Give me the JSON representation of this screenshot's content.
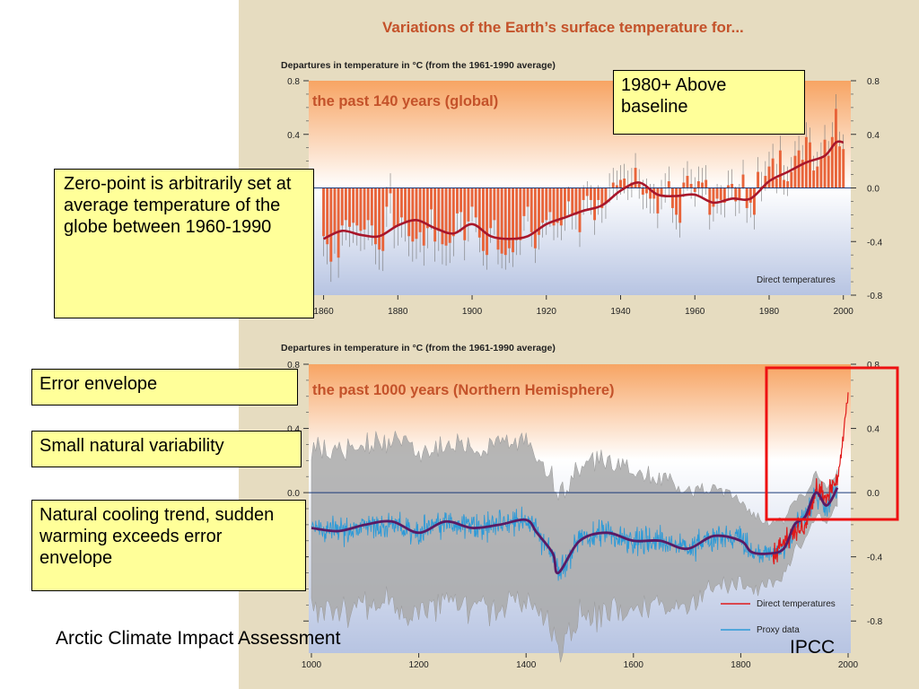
{
  "figure_title": "Variations of the Earth’s surface temperature for...",
  "callouts": {
    "above_baseline": "1980+ Above baseline",
    "zero_point": "Zero-point is arbitrarily set at average temperature of the globe between 1960-1990",
    "error_envelope": "Error envelope",
    "small_variability": "Small natural variability",
    "cooling_trend": "Natural cooling trend, sudden warming exceeds error envelope"
  },
  "footer": {
    "source": "Arctic Climate Impact Assessment",
    "credit": "IPCC"
  },
  "colors": {
    "panel_bg": "#e6dcc0",
    "warm_top": "#f7a463",
    "cool_bottom": "#b7c4e2",
    "title_orange": "#c4522a",
    "bar_orange": "#e8643a",
    "smooth_red": "#a8162a",
    "proxy_blue": "#2c9ad8",
    "smooth_purple": "#5a1a64",
    "envelope_gray": "#a9a9a9",
    "highlight_red": "#ee1111",
    "baseline_blue": "#1a3a78"
  },
  "chart_data": [
    {
      "type": "bar",
      "title": "the past 140 years (global)",
      "ylabel": "Departures in temperature in °C (from the 1961-1990 average)",
      "xlim": [
        1856,
        2002
      ],
      "ylim": [
        -0.8,
        0.8
      ],
      "x_ticks": [
        1860,
        1880,
        1900,
        1920,
        1940,
        1960,
        1980,
        2000
      ],
      "x_tick_labels": [
        "1860",
        "1880",
        "1900",
        "1920",
        "1940",
        "1960",
        "1980",
        "2000"
      ],
      "y_ticks": [
        -0.8,
        -0.4,
        0.0,
        0.4,
        0.8
      ],
      "y_tick_labels": [
        "-0.8",
        "-0.4",
        "0.0",
        "0.4",
        "0.8"
      ],
      "legend": "bottom-right",
      "series": [
        {
          "name": "Direct temperatures",
          "kind": "annual-bars",
          "x": [
            1860,
            1861,
            1862,
            1863,
            1864,
            1865,
            1866,
            1867,
            1868,
            1869,
            1870,
            1871,
            1872,
            1873,
            1874,
            1875,
            1876,
            1877,
            1878,
            1879,
            1880,
            1881,
            1882,
            1883,
            1884,
            1885,
            1886,
            1887,
            1888,
            1889,
            1890,
            1891,
            1892,
            1893,
            1894,
            1895,
            1896,
            1897,
            1898,
            1899,
            1900,
            1901,
            1902,
            1903,
            1904,
            1905,
            1906,
            1907,
            1908,
            1909,
            1910,
            1911,
            1912,
            1913,
            1914,
            1915,
            1916,
            1917,
            1918,
            1919,
            1920,
            1921,
            1922,
            1923,
            1924,
            1925,
            1926,
            1927,
            1928,
            1929,
            1930,
            1931,
            1932,
            1933,
            1934,
            1935,
            1936,
            1937,
            1938,
            1939,
            1940,
            1941,
            1942,
            1943,
            1944,
            1945,
            1946,
            1947,
            1948,
            1949,
            1950,
            1951,
            1952,
            1953,
            1954,
            1955,
            1956,
            1957,
            1958,
            1959,
            1960,
            1961,
            1962,
            1963,
            1964,
            1965,
            1966,
            1967,
            1968,
            1969,
            1970,
            1971,
            1972,
            1973,
            1974,
            1975,
            1976,
            1977,
            1978,
            1979,
            1980,
            1981,
            1982,
            1983,
            1984,
            1985,
            1986,
            1987,
            1988,
            1989,
            1990,
            1991,
            1992,
            1993,
            1994,
            1995,
            1996,
            1997,
            1998,
            1999,
            2000
          ],
          "values": [
            -0.36,
            -0.42,
            -0.55,
            -0.34,
            -0.52,
            -0.28,
            -0.24,
            -0.29,
            -0.26,
            -0.28,
            -0.32,
            -0.31,
            -0.24,
            -0.28,
            -0.42,
            -0.46,
            -0.47,
            -0.14,
            -0.04,
            -0.3,
            -0.28,
            -0.22,
            -0.25,
            -0.36,
            -0.4,
            -0.38,
            -0.33,
            -0.43,
            -0.3,
            -0.16,
            -0.4,
            -0.32,
            -0.42,
            -0.43,
            -0.41,
            -0.36,
            -0.19,
            -0.18,
            -0.39,
            -0.25,
            -0.14,
            -0.22,
            -0.37,
            -0.47,
            -0.5,
            -0.3,
            -0.24,
            -0.46,
            -0.49,
            -0.5,
            -0.45,
            -0.48,
            -0.39,
            -0.39,
            -0.21,
            -0.14,
            -0.33,
            -0.45,
            -0.35,
            -0.26,
            -0.24,
            -0.18,
            -0.28,
            -0.26,
            -0.28,
            -0.21,
            -0.1,
            -0.2,
            -0.2,
            -0.33,
            -0.09,
            -0.06,
            -0.09,
            -0.24,
            -0.09,
            -0.15,
            -0.12,
            0.0,
            0.04,
            0.02,
            0.06,
            0.07,
            0.02,
            0.04,
            0.15,
            0.03,
            -0.05,
            -0.04,
            -0.08,
            -0.08,
            -0.19,
            -0.05,
            0.0,
            0.05,
            -0.15,
            -0.2,
            -0.26,
            0.04,
            0.09,
            0.03,
            -0.03,
            0.05,
            0.04,
            0.06,
            -0.2,
            -0.14,
            -0.08,
            -0.09,
            -0.11,
            0.02,
            0.03,
            -0.1,
            -0.08,
            0.1,
            -0.15,
            -0.11,
            -0.2,
            0.12,
            0.01,
            0.09,
            0.16,
            0.22,
            0.07,
            0.28,
            0.06,
            0.05,
            0.12,
            0.24,
            0.28,
            0.21,
            0.38,
            0.34,
            0.13,
            0.16,
            0.23,
            0.36,
            0.24,
            0.38,
            0.59,
            0.31,
            0.29
          ]
        },
        {
          "name": "",
          "kind": "smoothed-curve",
          "x": [
            1860,
            1865,
            1870,
            1875,
            1880,
            1885,
            1890,
            1895,
            1900,
            1905,
            1910,
            1915,
            1920,
            1925,
            1930,
            1935,
            1940,
            1945,
            1950,
            1955,
            1960,
            1965,
            1970,
            1975,
            1980,
            1985,
            1990,
            1995,
            1998,
            2000
          ],
          "values": [
            -0.38,
            -0.32,
            -0.35,
            -0.36,
            -0.28,
            -0.24,
            -0.3,
            -0.34,
            -0.27,
            -0.36,
            -0.38,
            -0.36,
            -0.27,
            -0.22,
            -0.17,
            -0.13,
            -0.02,
            0.04,
            -0.05,
            -0.06,
            -0.05,
            -0.11,
            -0.08,
            -0.08,
            0.05,
            0.12,
            0.19,
            0.24,
            0.34,
            0.34
          ]
        }
      ]
    },
    {
      "type": "line",
      "title": "the past 1000 years (Northern Hemisphere)",
      "ylabel": "Departures in temperature in °C (from the 1961-1990 average)",
      "xlim": [
        995,
        2005
      ],
      "ylim": [
        -1.0,
        0.8
      ],
      "x_ticks": [
        1000,
        1200,
        1400,
        1600,
        1800,
        2000
      ],
      "x_tick_labels": [
        "1000",
        "1200",
        "1400",
        "1600",
        "1800",
        "2000"
      ],
      "y_ticks": [
        -0.8,
        -0.4,
        0.0,
        0.4,
        0.8
      ],
      "y_tick_labels_left": [
        "",
        "",
        "0.0",
        "0.4",
        "0.8"
      ],
      "y_tick_labels_right": [
        "-0.8",
        "-0.4",
        "0.0",
        "0.4",
        "0.8"
      ],
      "legend": "bottom-right",
      "series": [
        {
          "name": "",
          "kind": "smoothed-curve",
          "x": [
            1000,
            1050,
            1100,
            1150,
            1200,
            1250,
            1300,
            1350,
            1400,
            1420,
            1450,
            1460,
            1500,
            1550,
            1600,
            1650,
            1700,
            1750,
            1800,
            1820,
            1850,
            1880,
            1900,
            1920,
            1940,
            1960,
            1980
          ],
          "values": [
            -0.22,
            -0.24,
            -0.2,
            -0.18,
            -0.25,
            -0.18,
            -0.22,
            -0.2,
            -0.17,
            -0.25,
            -0.38,
            -0.5,
            -0.3,
            -0.25,
            -0.3,
            -0.3,
            -0.35,
            -0.27,
            -0.3,
            -0.37,
            -0.38,
            -0.35,
            -0.2,
            -0.15,
            0.0,
            -0.08,
            0.03
          ]
        },
        {
          "name": "Proxy data",
          "kind": "annual-series",
          "x_start": 1000,
          "x_end": 1980,
          "noise_amplitude": 0.12
        },
        {
          "name": "Direct temperatures",
          "kind": "annual-series",
          "x": [
            1860,
            1880,
            1900,
            1920,
            1940,
            1960,
            1980,
            1990,
            1995,
            2000
          ],
          "values": [
            -0.4,
            -0.3,
            -0.25,
            -0.2,
            0.02,
            -0.05,
            0.1,
            0.3,
            0.45,
            0.62
          ]
        },
        {
          "name": "",
          "kind": "error-envelope",
          "x": [
            1000,
            1200,
            1400,
            1600,
            1700,
            1800,
            1900,
            1980
          ],
          "half_width": [
            0.5,
            0.5,
            0.48,
            0.45,
            0.35,
            0.25,
            0.15,
            0.1
          ]
        }
      ]
    }
  ]
}
